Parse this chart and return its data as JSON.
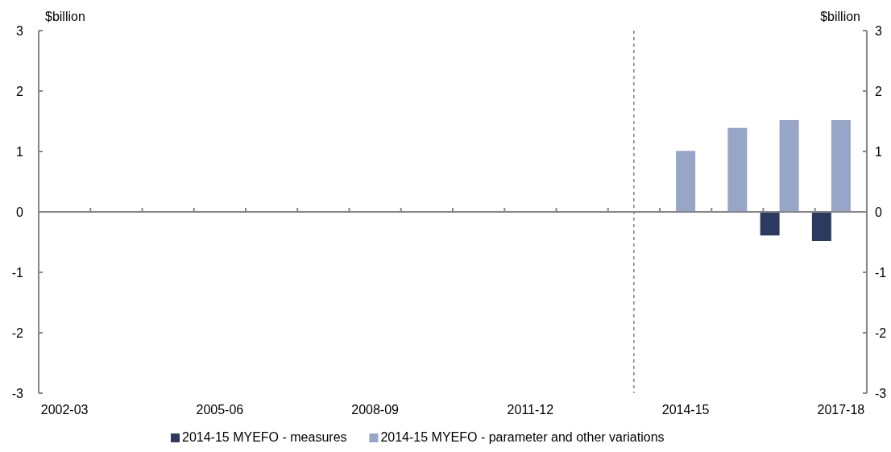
{
  "chart_data": {
    "type": "bar",
    "categories": [
      "2002-03",
      null,
      null,
      "2005-06",
      null,
      null,
      "2008-09",
      null,
      null,
      "2011-12",
      null,
      null,
      "2014-15",
      null,
      null,
      "2017-18"
    ],
    "series": [
      {
        "name": "2014-15 MYEFO - measures",
        "color": "#2b3a5e",
        "values": [
          null,
          null,
          null,
          null,
          null,
          null,
          null,
          null,
          null,
          null,
          null,
          null,
          null,
          null,
          -0.39,
          -0.48
        ]
      },
      {
        "name": "2014-15 MYEFO - parameter and other variations",
        "color": "#96a5c8",
        "values": [
          null,
          null,
          null,
          null,
          null,
          null,
          null,
          null,
          null,
          null,
          null,
          null,
          1.01,
          1.39,
          1.52,
          1.52
        ]
      }
    ],
    "ylim": [
      -3,
      3
    ],
    "yticks": [
      -3,
      -2,
      -1,
      0,
      1,
      2,
      3
    ],
    "y2lim": [
      -3,
      3
    ],
    "y2ticks": [
      -3,
      -2,
      -1,
      0,
      1,
      2,
      3
    ],
    "ylabel": "$billion",
    "y2label": "$billion",
    "grid": false,
    "legend": "bottom"
  }
}
